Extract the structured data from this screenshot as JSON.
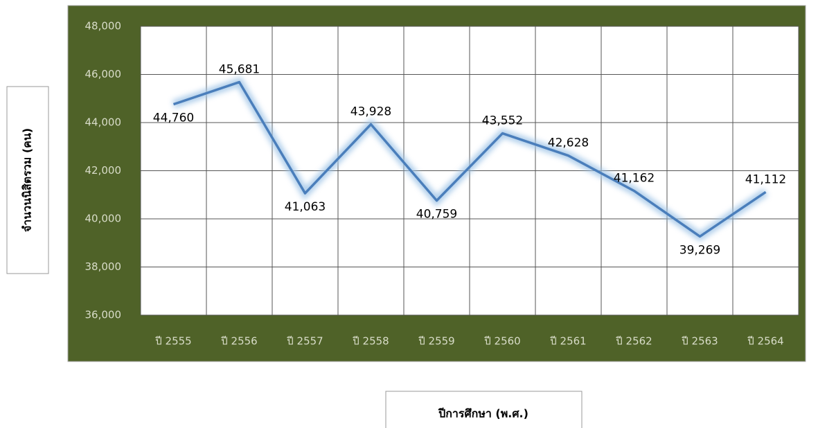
{
  "chart_data": {
    "type": "line",
    "categories": [
      "ปี 2555",
      "ปี 2556",
      "ปี 2557",
      "ปี 2558",
      "ปี 2559",
      "ปี 2560",
      "ปี 2561",
      "ปี 2562",
      "ปี 2563",
      "ปี 2564"
    ],
    "series": [
      {
        "name": "จำนวนนิสิตรวม",
        "color": "#4a7ebb",
        "values": [
          44760,
          45681,
          41063,
          43928,
          40759,
          43552,
          42628,
          41162,
          39269,
          41112
        ],
        "value_labels": [
          "44,760",
          "45,681",
          "41,063",
          "43,928",
          "40,759",
          "43,552",
          "42,628",
          "41,162",
          "39,269",
          "41,112"
        ]
      }
    ],
    "ylabel": "จำนวนนิสิตรวม (คน)",
    "xlabel": "ปีการศึกษา (พ.ศ.)",
    "ylim": [
      36000,
      48000
    ],
    "yticks": [
      {
        "value": 36000,
        "label": "36,000"
      },
      {
        "value": 38000,
        "label": "38,000"
      },
      {
        "value": 40000,
        "label": "40,000"
      },
      {
        "value": 42000,
        "label": "42,000"
      },
      {
        "value": 44000,
        "label": "44,000"
      },
      {
        "value": 46000,
        "label": "46,000"
      },
      {
        "value": 48000,
        "label": "48,000"
      }
    ],
    "grid": true
  }
}
